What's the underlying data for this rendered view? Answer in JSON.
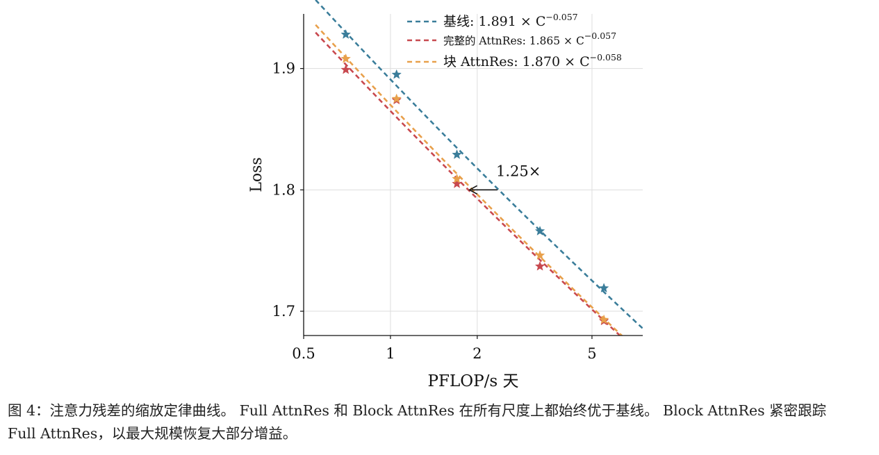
{
  "caption": {
    "line1": "图 4：注意力残差的缩放定律曲线。 Full AttnRes 和 Block AttnRes 在所有尺度上都始终优于基线。 Block AttnRes 紧密跟踪",
    "line2": "Full AttnRes，以最大规模恢复大部分增益。"
  },
  "chart_data": {
    "type": "scatter",
    "title": "",
    "xlabel": "PFLOP/s 天",
    "ylabel": "Loss",
    "xscale": "log",
    "xlim": [
      0.5,
      7.5
    ],
    "ylim": [
      1.68,
      1.945
    ],
    "xticks": [
      {
        "value": 0.5,
        "label": "0.5"
      },
      {
        "value": 1,
        "label": "1"
      },
      {
        "value": 2,
        "label": "2"
      },
      {
        "value": 5,
        "label": "5"
      }
    ],
    "yticks": [
      {
        "value": 1.7,
        "label": "1.7"
      },
      {
        "value": 1.8,
        "label": "1.8"
      },
      {
        "value": 1.9,
        "label": "1.9"
      }
    ],
    "grid": true,
    "legend_position": "top-right",
    "series": [
      {
        "key": "baseline",
        "name": "基线:",
        "fit_label": "1.891 × C",
        "fit_exp": "−0.057",
        "coef": 1.891,
        "exponent": -0.057,
        "color": "#3a7d9a",
        "x": [
          0.7,
          1.05,
          1.7,
          3.3,
          5.5
        ],
        "y": [
          1.928,
          1.895,
          1.829,
          1.766,
          1.719
        ]
      },
      {
        "key": "full",
        "name": "完整的 AttnRes:",
        "fit_label": "1.865 × C",
        "fit_exp": "−0.057",
        "coef": 1.865,
        "exponent": -0.057,
        "color": "#c8494f",
        "x": [
          0.7,
          1.05,
          1.7,
          3.3,
          5.5
        ],
        "y": [
          1.899,
          1.874,
          1.805,
          1.737,
          1.692
        ]
      },
      {
        "key": "block",
        "name": "块 AttnRes:",
        "fit_label": "1.870 × C",
        "fit_exp": "−0.058",
        "coef": 1.87,
        "exponent": -0.058,
        "color": "#e8a04b",
        "x": [
          0.7,
          1.05,
          1.7,
          3.3,
          5.5
        ],
        "y": [
          1.908,
          1.875,
          1.809,
          1.746,
          1.693
        ]
      }
    ],
    "annotation": {
      "text": "1.25×",
      "y": 1.8,
      "x_from": 2.35,
      "x_to": 1.88
    }
  }
}
